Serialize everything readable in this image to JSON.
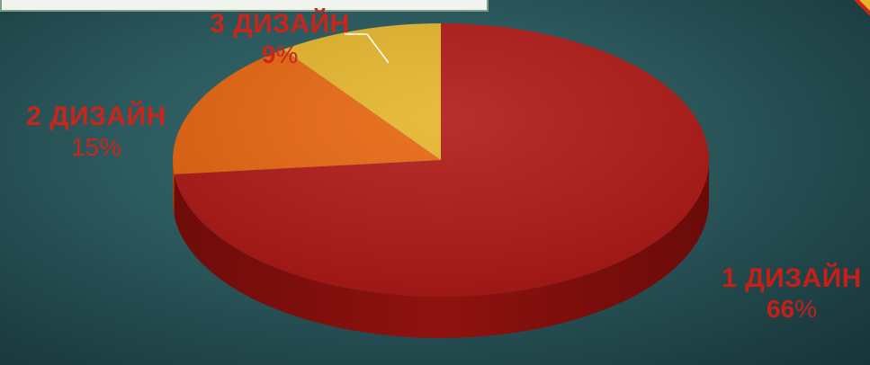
{
  "chart_data": {
    "type": "pie",
    "title": "",
    "slices": [
      {
        "label": "1 ДИЗАЙН",
        "value": 66,
        "pct_number": "66",
        "pct_sign": "%",
        "color": "#b01815"
      },
      {
        "label": "2 ДИЗАЙН",
        "value": 15,
        "pct_number": "15",
        "pct_sign": "%",
        "color": "#e8650e"
      },
      {
        "label": "3 ДИЗАЙН",
        "value": 9,
        "pct_number": "9",
        "pct_sign": "%",
        "color": "#e5b52a"
      }
    ],
    "label_colors": {
      "1 ДИЗАЙН": "#c51f17",
      "2 ДИЗАЙН": "#c8261a",
      "3 ДИЗАЙН": "#c8261a"
    },
    "legend": "none",
    "style": "3d-exploded-less"
  }
}
